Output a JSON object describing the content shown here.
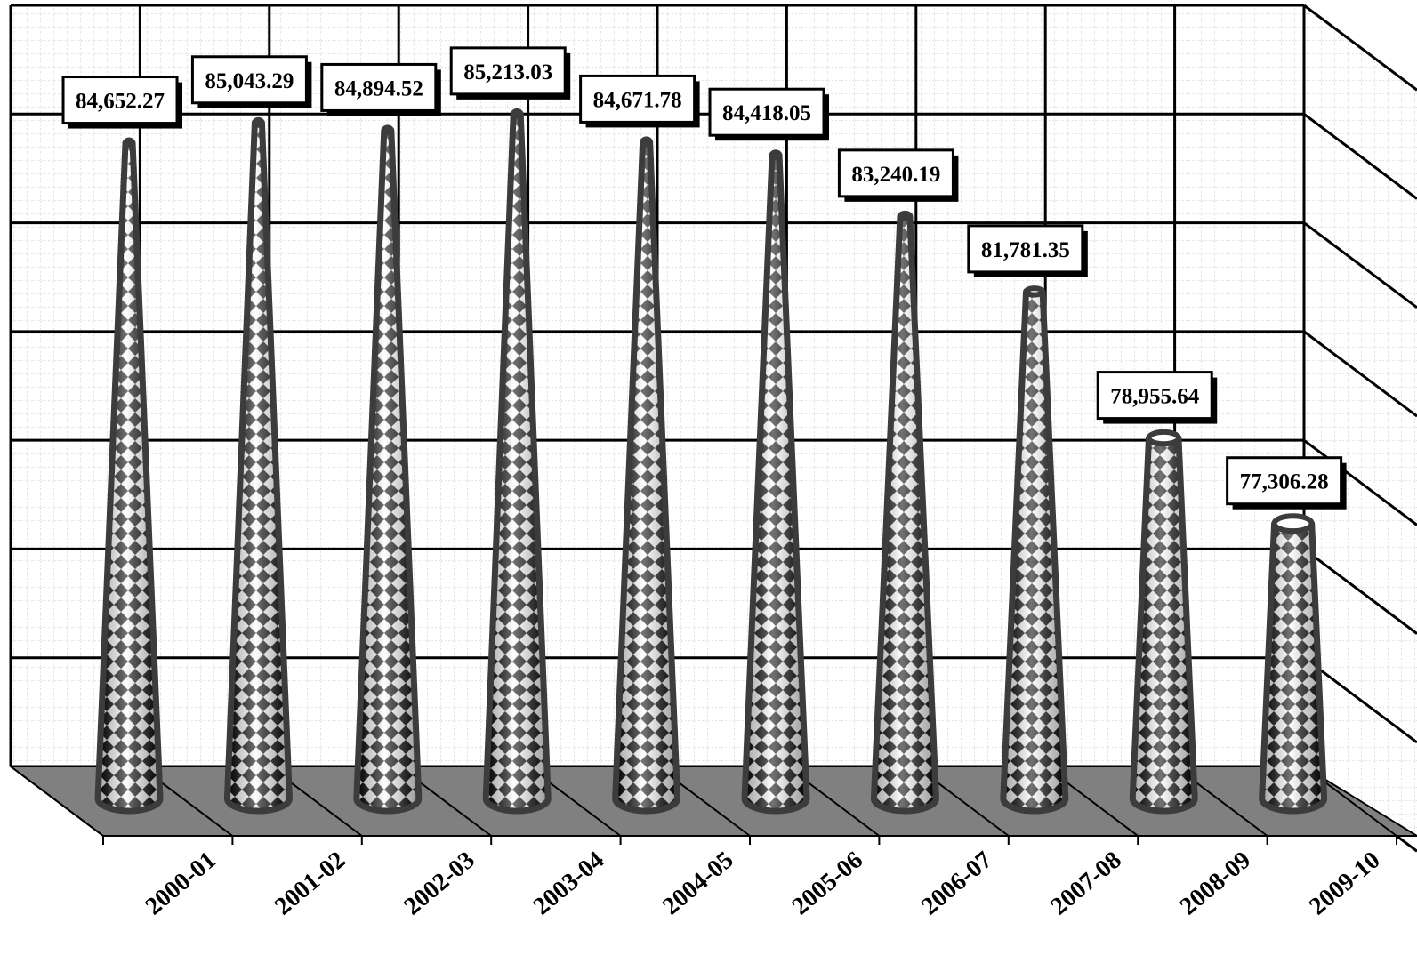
{
  "chart_data": {
    "type": "bar",
    "bar_shape": "cone-3d",
    "categories": [
      "2000-01",
      "2001-02",
      "2002-03",
      "2003-04",
      "2004-05",
      "2005-06",
      "2006-07",
      "2007-08",
      "2008-09",
      "2009-10"
    ],
    "values": [
      84652.27,
      85043.29,
      84894.52,
      85213.03,
      84671.78,
      84418.05,
      83240.19,
      81781.35,
      78955.64,
      77306.28
    ],
    "data_labels": [
      "84,652.27",
      "85,043.29",
      "84,894.52",
      "85,213.03",
      "84,671.78",
      "84,418.05",
      "83,240.19",
      "81,781.35",
      "78,955.64",
      "77,306.28"
    ],
    "title": "",
    "xlabel": "",
    "ylabel": "",
    "ylim": [
      72000,
      86000
    ],
    "grid": true,
    "legend": "none",
    "colors": {
      "background": "#ffffff",
      "floor": "#808080",
      "grid": "#000000",
      "cone_outline": "#3c3c3c",
      "pattern_dark": "#000000",
      "pattern_light": "#ffffff"
    }
  }
}
